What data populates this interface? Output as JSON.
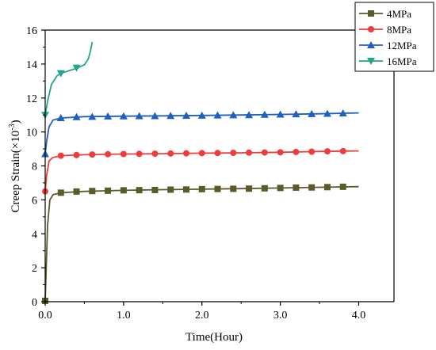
{
  "chart_data": {
    "type": "line",
    "xlabel": "Time(Hour)",
    "ylabel_main": "Creep Strain(×10",
    "ylabel_sup": "-3",
    "ylabel_close": ")",
    "xlim": [
      0,
      4.45
    ],
    "ylim": [
      0,
      16
    ],
    "xticks": [
      0,
      1,
      2,
      3,
      4
    ],
    "xtick_labels": [
      "0.0",
      "1.0",
      "2.0",
      "3.0",
      "4.0"
    ],
    "yticks": [
      0,
      2,
      4,
      6,
      8,
      10,
      12,
      14,
      16
    ],
    "ytick_labels": [
      "0",
      "2",
      "4",
      "6",
      "8",
      "10",
      "12",
      "14",
      "16"
    ],
    "legend_position": "top-right",
    "series": [
      {
        "name": "4MPa",
        "color": "#5a5a2a",
        "marker": "square",
        "curve": [
          [
            0.0,
            0.0
          ],
          [
            0.01,
            1.5
          ],
          [
            0.03,
            4.5
          ],
          [
            0.06,
            6.0
          ],
          [
            0.1,
            6.3
          ],
          [
            0.2,
            6.42
          ],
          [
            0.5,
            6.5
          ],
          [
            1.0,
            6.56
          ],
          [
            1.5,
            6.6
          ],
          [
            2.0,
            6.63
          ],
          [
            2.5,
            6.66
          ],
          [
            3.0,
            6.7
          ],
          [
            3.5,
            6.74
          ],
          [
            4.0,
            6.78
          ]
        ],
        "markers": [
          [
            0.0,
            0.05
          ],
          [
            0.2,
            6.42
          ],
          [
            0.4,
            6.49
          ],
          [
            0.6,
            6.52
          ],
          [
            0.8,
            6.54
          ],
          [
            1.0,
            6.56
          ],
          [
            1.2,
            6.57
          ],
          [
            1.4,
            6.58
          ],
          [
            1.6,
            6.6
          ],
          [
            1.8,
            6.61
          ],
          [
            2.0,
            6.63
          ],
          [
            2.2,
            6.64
          ],
          [
            2.4,
            6.65
          ],
          [
            2.6,
            6.66
          ],
          [
            2.8,
            6.68
          ],
          [
            3.0,
            6.7
          ],
          [
            3.2,
            6.72
          ],
          [
            3.4,
            6.73
          ],
          [
            3.6,
            6.75
          ],
          [
            3.8,
            6.77
          ]
        ]
      },
      {
        "name": "8MPa",
        "color": "#ef3b3b",
        "marker": "circle",
        "curve": [
          [
            0.0,
            6.5
          ],
          [
            0.02,
            7.5
          ],
          [
            0.05,
            8.3
          ],
          [
            0.1,
            8.5
          ],
          [
            0.2,
            8.6
          ],
          [
            0.5,
            8.66
          ],
          [
            1.0,
            8.7
          ],
          [
            1.5,
            8.72
          ],
          [
            2.0,
            8.75
          ],
          [
            2.5,
            8.77
          ],
          [
            3.0,
            8.8
          ],
          [
            3.5,
            8.85
          ],
          [
            4.0,
            8.88
          ]
        ],
        "markers": [
          [
            0.0,
            6.5
          ],
          [
            0.2,
            8.6
          ],
          [
            0.4,
            8.64
          ],
          [
            0.6,
            8.67
          ],
          [
            0.8,
            8.69
          ],
          [
            1.0,
            8.7
          ],
          [
            1.2,
            8.71
          ],
          [
            1.4,
            8.72
          ],
          [
            1.6,
            8.73
          ],
          [
            1.8,
            8.74
          ],
          [
            2.0,
            8.75
          ],
          [
            2.2,
            8.76
          ],
          [
            2.4,
            8.77
          ],
          [
            2.6,
            8.78
          ],
          [
            2.8,
            8.79
          ],
          [
            3.0,
            8.8
          ],
          [
            3.2,
            8.82
          ],
          [
            3.4,
            8.84
          ],
          [
            3.6,
            8.86
          ],
          [
            3.8,
            8.87
          ]
        ]
      },
      {
        "name": "12MPa",
        "color": "#1f5fbf",
        "marker": "triangle-up",
        "curve": [
          [
            0.0,
            8.7
          ],
          [
            0.02,
            9.5
          ],
          [
            0.05,
            10.3
          ],
          [
            0.1,
            10.7
          ],
          [
            0.2,
            10.82
          ],
          [
            0.5,
            10.9
          ],
          [
            1.0,
            10.93
          ],
          [
            1.5,
            10.95
          ],
          [
            2.0,
            10.97
          ],
          [
            2.5,
            11.0
          ],
          [
            3.0,
            11.03
          ],
          [
            3.5,
            11.07
          ],
          [
            4.0,
            11.12
          ]
        ],
        "markers": [
          [
            0.0,
            8.7
          ],
          [
            0.2,
            10.82
          ],
          [
            0.4,
            10.88
          ],
          [
            0.6,
            10.9
          ],
          [
            0.8,
            10.92
          ],
          [
            1.0,
            10.93
          ],
          [
            1.2,
            10.94
          ],
          [
            1.4,
            10.94
          ],
          [
            1.6,
            10.95
          ],
          [
            1.8,
            10.96
          ],
          [
            2.0,
            10.97
          ],
          [
            2.2,
            10.98
          ],
          [
            2.4,
            10.99
          ],
          [
            2.6,
            11.0
          ],
          [
            2.8,
            11.02
          ],
          [
            3.0,
            11.03
          ],
          [
            3.2,
            11.05
          ],
          [
            3.4,
            11.06
          ],
          [
            3.6,
            11.08
          ],
          [
            3.8,
            11.1
          ]
        ]
      },
      {
        "name": "16MPa",
        "color": "#22a68a",
        "marker": "triangle-down",
        "curve": [
          [
            0.0,
            11.0
          ],
          [
            0.03,
            11.8
          ],
          [
            0.08,
            12.8
          ],
          [
            0.15,
            13.3
          ],
          [
            0.2,
            13.45
          ],
          [
            0.3,
            13.6
          ],
          [
            0.4,
            13.75
          ],
          [
            0.5,
            13.95
          ],
          [
            0.55,
            14.3
          ],
          [
            0.58,
            14.8
          ],
          [
            0.6,
            15.3
          ]
        ],
        "markers": [
          [
            0.0,
            11.0
          ],
          [
            0.2,
            13.45
          ],
          [
            0.4,
            13.78
          ]
        ]
      }
    ]
  }
}
